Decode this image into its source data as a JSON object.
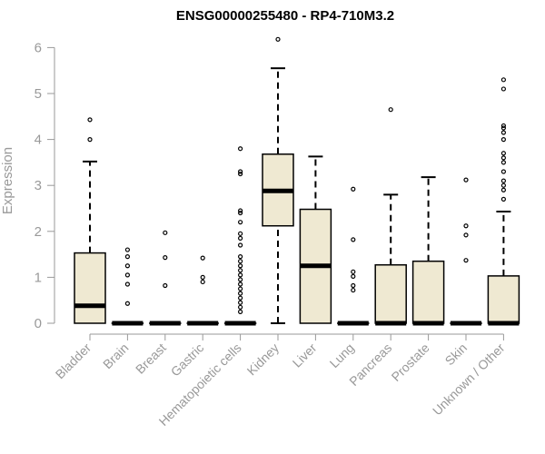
{
  "chart_data": {
    "type": "box",
    "title": "ENSG00000255480 - RP4-710M3.2",
    "xlabel": "",
    "ylabel": "Expression",
    "ylim": [
      0,
      6.2
    ],
    "yticks": [
      0,
      1,
      2,
      3,
      4,
      5,
      6
    ],
    "box_fill": "#efe9d2",
    "categories": [
      "Bladder",
      "Brain",
      "Breast",
      "Gastric",
      "Hematopoietic cells",
      "Kidney",
      "Liver",
      "Lung",
      "Pancreas",
      "Prostate",
      "Skin",
      "Unknown / Other"
    ],
    "boxes": [
      {
        "name": "Bladder",
        "min": 0,
        "q1": 0,
        "median": 0.38,
        "q3": 1.53,
        "max": 3.52,
        "outliers": [
          4.0,
          4.43
        ]
      },
      {
        "name": "Brain",
        "min": 0,
        "q1": 0,
        "median": 0,
        "q3": 0,
        "max": 0,
        "outliers": [
          0.43,
          0.85,
          1.05,
          1.25,
          1.45,
          1.6
        ]
      },
      {
        "name": "Breast",
        "min": 0,
        "q1": 0,
        "median": 0,
        "q3": 0,
        "max": 0,
        "outliers": [
          0.82,
          1.43,
          1.97
        ]
      },
      {
        "name": "Gastric",
        "min": 0,
        "q1": 0,
        "median": 0,
        "q3": 0,
        "max": 0,
        "outliers": [
          0.9,
          1.0,
          1.42
        ]
      },
      {
        "name": "Hematopoietic cells",
        "min": 0,
        "q1": 0,
        "median": 0,
        "q3": 0,
        "max": 0,
        "outliers": [
          0.25,
          0.35,
          0.45,
          0.55,
          0.65,
          0.75,
          0.85,
          0.95,
          1.05,
          1.15,
          1.25,
          1.35,
          1.45,
          1.7,
          1.85,
          1.95,
          2.2,
          2.4,
          2.45,
          3.25,
          3.3,
          3.8
        ]
      },
      {
        "name": "Kidney",
        "min": 0,
        "q1": 2.12,
        "median": 2.88,
        "q3": 3.68,
        "max": 5.55,
        "outliers": [
          6.18
        ]
      },
      {
        "name": "Liver",
        "min": 0,
        "q1": 0,
        "median": 1.25,
        "q3": 2.48,
        "max": 3.63,
        "outliers": []
      },
      {
        "name": "Lung",
        "min": 0,
        "q1": 0,
        "median": 0,
        "q3": 0,
        "max": 0,
        "outliers": [
          0.72,
          0.82,
          1.02,
          1.12,
          1.82,
          2.92
        ]
      },
      {
        "name": "Pancreas",
        "min": 0,
        "q1": 0,
        "median": 0,
        "q3": 1.27,
        "max": 2.8,
        "outliers": [
          4.65
        ]
      },
      {
        "name": "Prostate",
        "min": 0,
        "q1": 0,
        "median": 0,
        "q3": 1.35,
        "max": 3.18,
        "outliers": []
      },
      {
        "name": "Skin",
        "min": 0,
        "q1": 0,
        "median": 0,
        "q3": 0,
        "max": 0,
        "outliers": [
          1.37,
          1.92,
          2.12,
          3.12
        ]
      },
      {
        "name": "Unknown / Other",
        "min": 0,
        "q1": 0,
        "median": 0,
        "q3": 1.03,
        "max": 2.43,
        "outliers": [
          2.7,
          2.9,
          3.0,
          3.1,
          3.3,
          3.5,
          3.6,
          3.7,
          4.0,
          4.15,
          4.25,
          4.3,
          5.1,
          5.3
        ]
      }
    ]
  }
}
